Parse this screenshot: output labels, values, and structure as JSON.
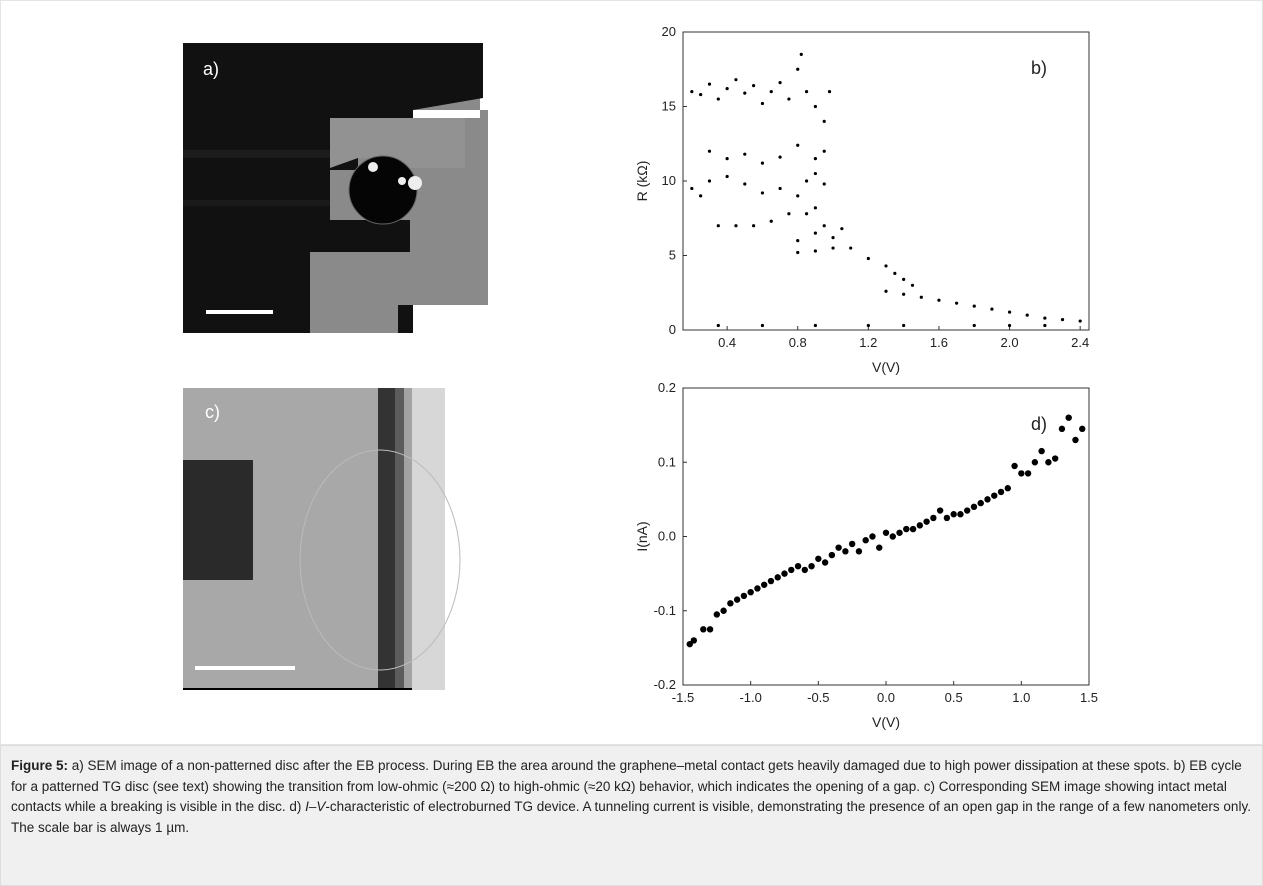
{
  "images": [
    {
      "label": "a)"
    },
    {
      "label": "c)"
    }
  ],
  "chart_data": [
    {
      "type": "scatter",
      "annotation": "b)",
      "xlabel": "V(V)",
      "ylabel": "R (kΩ)",
      "color": "#000000",
      "xlim": [
        0.15,
        2.45
      ],
      "ylim": [
        0,
        20
      ],
      "xticks": [
        0.4,
        0.8,
        1.2,
        1.6,
        {
          "value": 2,
          "label": "2.0"
        },
        2.4
      ],
      "yticks": [
        0,
        5,
        10,
        15,
        20
      ],
      "x": [
        0.2,
        0.25,
        0.3,
        0.35,
        0.4,
        0.45,
        0.5,
        0.55,
        0.6,
        0.65,
        0.7,
        0.75,
        0.8,
        0.82,
        0.85,
        0.9,
        0.95,
        0.98,
        0.3,
        0.4,
        0.5,
        0.6,
        0.7,
        0.8,
        0.9,
        0.95,
        0.2,
        0.25,
        0.3,
        0.4,
        0.5,
        0.6,
        0.7,
        0.8,
        0.85,
        0.9,
        0.95,
        0.35,
        0.45,
        0.55,
        0.65,
        0.75,
        0.85,
        0.9,
        0.95,
        0.8,
        0.9,
        1.0,
        1.05,
        0.8,
        0.9,
        1.0,
        1.1,
        1.2,
        1.3,
        1.35,
        1.4,
        1.45,
        1.3,
        1.4,
        1.5,
        1.6,
        1.7,
        1.8,
        1.9,
        2.0,
        2.1,
        2.2,
        2.3,
        2.4,
        0.35,
        0.6,
        0.9,
        1.2,
        1.4,
        1.8,
        2.0,
        2.2
      ],
      "values": [
        16,
        15.8,
        16.5,
        15.5,
        16.2,
        16.8,
        15.9,
        16.4,
        15.2,
        16,
        16.6,
        15.5,
        17.5,
        18.5,
        16,
        15,
        14,
        16,
        12,
        11.5,
        11.8,
        11.2,
        11.6,
        12.4,
        11.5,
        12,
        9.5,
        9,
        10,
        10.3,
        9.8,
        9.2,
        9.5,
        9,
        10,
        10.5,
        9.8,
        7,
        7,
        7,
        7.3,
        7.8,
        7.8,
        8.2,
        7,
        6,
        6.5,
        6.2,
        6.8,
        5.2,
        5.3,
        5.5,
        5.5,
        4.8,
        4.3,
        3.8,
        3.4,
        3,
        2.6,
        2.4,
        2.2,
        2,
        1.8,
        1.6,
        1.4,
        1.2,
        1,
        0.8,
        0.7,
        0.6,
        0.3,
        0.3,
        0.3,
        0.3,
        0.3,
        0.3,
        0.3,
        0.3
      ]
    },
    {
      "type": "scatter",
      "annotation": "d)",
      "xlabel": "V(V)",
      "ylabel": "I(nA)",
      "color": "#000000",
      "xlim": [
        -1.5,
        1.5
      ],
      "ylim": [
        -0.2,
        0.2
      ],
      "xticks": [
        -1.5,
        {
          "value": -1,
          "label": "-1.0"
        },
        -0.5,
        {
          "value": 0,
          "label": "0.0"
        },
        0.5,
        {
          "value": 1,
          "label": "1.0"
        },
        1.5
      ],
      "yticks": [
        -0.2,
        -0.1,
        {
          "value": 0,
          "label": "0.0"
        },
        0.1,
        0.2
      ],
      "x": [
        -1.45,
        -1.42,
        -1.35,
        -1.3,
        -1.25,
        -1.2,
        -1.15,
        -1.1,
        -1.05,
        -1,
        -0.95,
        -0.9,
        -0.85,
        -0.8,
        -0.75,
        -0.7,
        -0.65,
        -0.6,
        -0.55,
        -0.5,
        -0.45,
        -0.4,
        -0.35,
        -0.3,
        -0.25,
        -0.2,
        -0.15,
        -0.1,
        -0.05,
        0,
        0.05,
        0.1,
        0.15,
        0.2,
        0.25,
        0.3,
        0.35,
        0.4,
        0.45,
        0.5,
        0.55,
        0.6,
        0.65,
        0.7,
        0.75,
        0.8,
        0.85,
        0.9,
        0.95,
        1,
        1.05,
        1.1,
        1.15,
        1.2,
        1.25,
        1.3,
        1.35,
        1.4,
        1.45
      ],
      "values": [
        -0.145,
        -0.14,
        -0.125,
        -0.125,
        -0.105,
        -0.1,
        -0.09,
        -0.085,
        -0.08,
        -0.075,
        -0.07,
        -0.065,
        -0.06,
        -0.055,
        -0.05,
        -0.045,
        -0.04,
        -0.045,
        -0.04,
        -0.03,
        -0.035,
        -0.025,
        -0.015,
        -0.02,
        -0.01,
        -0.02,
        -0.005,
        0,
        -0.015,
        0.005,
        0,
        0.005,
        0.01,
        0.01,
        0.015,
        0.02,
        0.025,
        0.035,
        0.025,
        0.03,
        0.03,
        0.035,
        0.04,
        0.045,
        0.05,
        0.055,
        0.06,
        0.065,
        0.095,
        0.085,
        0.085,
        0.1,
        0.115,
        0.1,
        0.105,
        0.145,
        0.16,
        0.13,
        0.145
      ]
    }
  ],
  "caption": {
    "label": "Figure 5:",
    "text_1": "a) SEM image of a non-patterned disc after the EB process. During EB the area around the graphene–metal contact gets heavily damaged due to high power dissipation at these spots. b) EB cycle for a patterned TG disc (see text) showing the transition from low-ohmic (≈200 Ω) to high-ohmic (≈20 kΩ) behavior, which indicates the opening of a gap. c) Corresponding SEM image showing intact metal contacts while a breaking is visible in the disc. d) ",
    "italic": "I–V",
    "text_2": "-characteristic of electroburned TG device. A tunneling current is visible, demonstrating the presence of an open gap in the range of a few nanometers only. The scale bar is always 1 µm."
  }
}
